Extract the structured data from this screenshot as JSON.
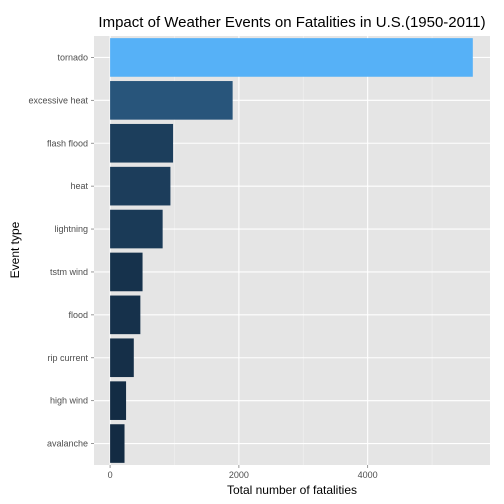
{
  "chart_data": {
    "type": "bar",
    "orientation": "horizontal",
    "title": "Impact of Weather Events on Fatalities in U.S.(1950-2011)",
    "xlabel": "Total number of fatalities",
    "ylabel": "Event type",
    "xlim": [
      -250,
      5900
    ],
    "xticks": [
      0,
      2000,
      4000
    ],
    "xtick_labels": [
      "0",
      "2000",
      "4000"
    ],
    "categories": [
      "tornado",
      "excessive heat",
      "flash flood",
      "heat",
      "lightning",
      "tstm wind",
      "flood",
      "rip current",
      "high wind",
      "avalanche"
    ],
    "values": [
      5633,
      1903,
      978,
      937,
      816,
      504,
      470,
      368,
      248,
      224
    ],
    "color_scale": {
      "low": "#132b43",
      "high": "#56b1f7"
    },
    "panel_background": "#e5e5e5",
    "grid": true,
    "legend": "none"
  }
}
